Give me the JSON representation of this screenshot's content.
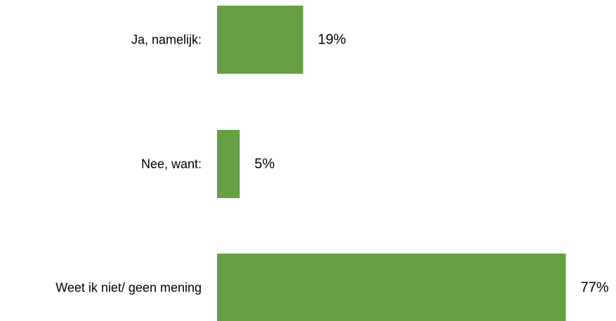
{
  "chart_data": {
    "type": "bar",
    "orientation": "horizontal",
    "categories": [
      "Ja, namelijk:",
      "Nee, want:",
      "Weet ik niet/ geen mening"
    ],
    "values": [
      19,
      5,
      77
    ],
    "value_labels": [
      "19%",
      "5%",
      "77%"
    ],
    "unit": "%",
    "xlim": [
      0,
      100
    ],
    "grid": false,
    "legend": "none",
    "bar_color": "#65a044"
  }
}
